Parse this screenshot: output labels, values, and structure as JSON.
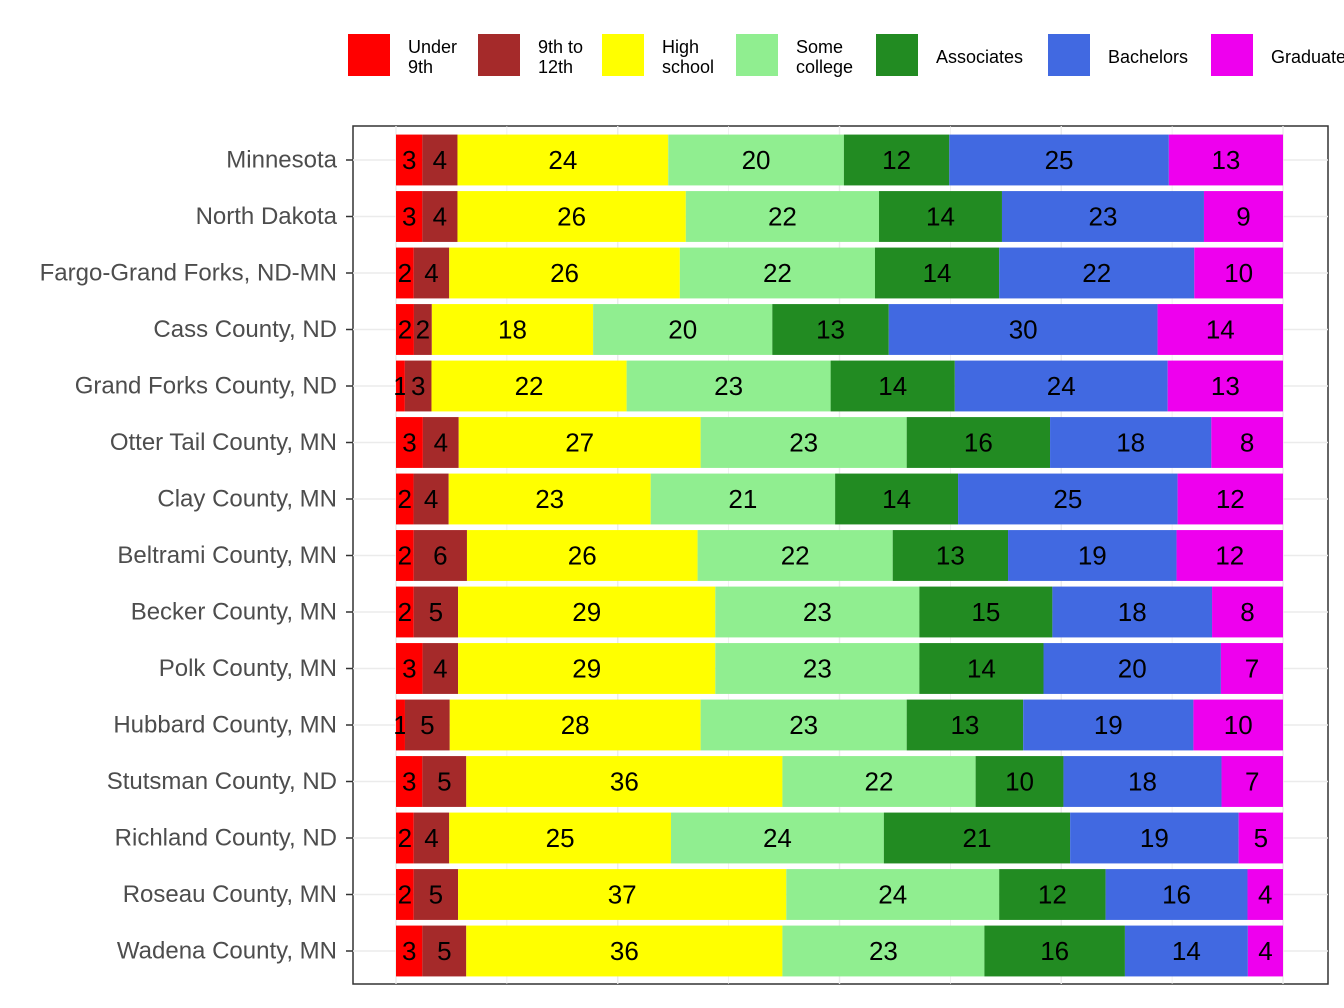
{
  "chart_data": {
    "type": "bar",
    "orientation": "horizontal",
    "stacked": true,
    "grid": true,
    "legend_position": "top",
    "xlim": [
      0,
      100
    ],
    "categories": [
      "Minnesota",
      "North Dakota",
      "Fargo-Grand Forks, ND-MN",
      "Cass County, ND",
      "Grand Forks County, ND",
      "Otter Tail County, MN",
      "Clay County, MN",
      "Beltrami County, MN",
      "Becker County, MN",
      "Polk County, MN",
      "Hubbard County, MN",
      "Stutsman County, ND",
      "Richland County, ND",
      "Roseau County, MN",
      "Wadena County, MN"
    ],
    "series": [
      {
        "name": "Under\n9th",
        "color": "#ff0000",
        "values": [
          3,
          3,
          2,
          2,
          1,
          3,
          2,
          2,
          2,
          3,
          1,
          3,
          2,
          2,
          3
        ]
      },
      {
        "name": "9th to\n12th",
        "color": "#a52a2a",
        "values": [
          4,
          4,
          4,
          2,
          3,
          4,
          4,
          6,
          5,
          4,
          5,
          5,
          4,
          5,
          5
        ]
      },
      {
        "name": "High\nschool",
        "color": "#ffff00",
        "values": [
          24,
          26,
          26,
          18,
          22,
          27,
          23,
          26,
          29,
          29,
          28,
          36,
          25,
          37,
          36
        ]
      },
      {
        "name": "Some\ncollege",
        "color": "#90ee90",
        "values": [
          20,
          22,
          22,
          20,
          23,
          23,
          21,
          22,
          23,
          23,
          23,
          22,
          24,
          24,
          23
        ]
      },
      {
        "name": "Associates",
        "color": "#228b22",
        "values": [
          12,
          14,
          14,
          13,
          14,
          16,
          14,
          13,
          15,
          14,
          13,
          10,
          21,
          12,
          16
        ]
      },
      {
        "name": "Bachelors",
        "color": "#4169e1",
        "values": [
          25,
          23,
          22,
          30,
          24,
          18,
          25,
          19,
          18,
          20,
          19,
          18,
          19,
          16,
          14
        ]
      },
      {
        "name": "Graduate",
        "color": "#ee00ee",
        "values": [
          13,
          9,
          10,
          14,
          13,
          8,
          12,
          12,
          8,
          7,
          10,
          7,
          5,
          4,
          4
        ]
      }
    ]
  }
}
